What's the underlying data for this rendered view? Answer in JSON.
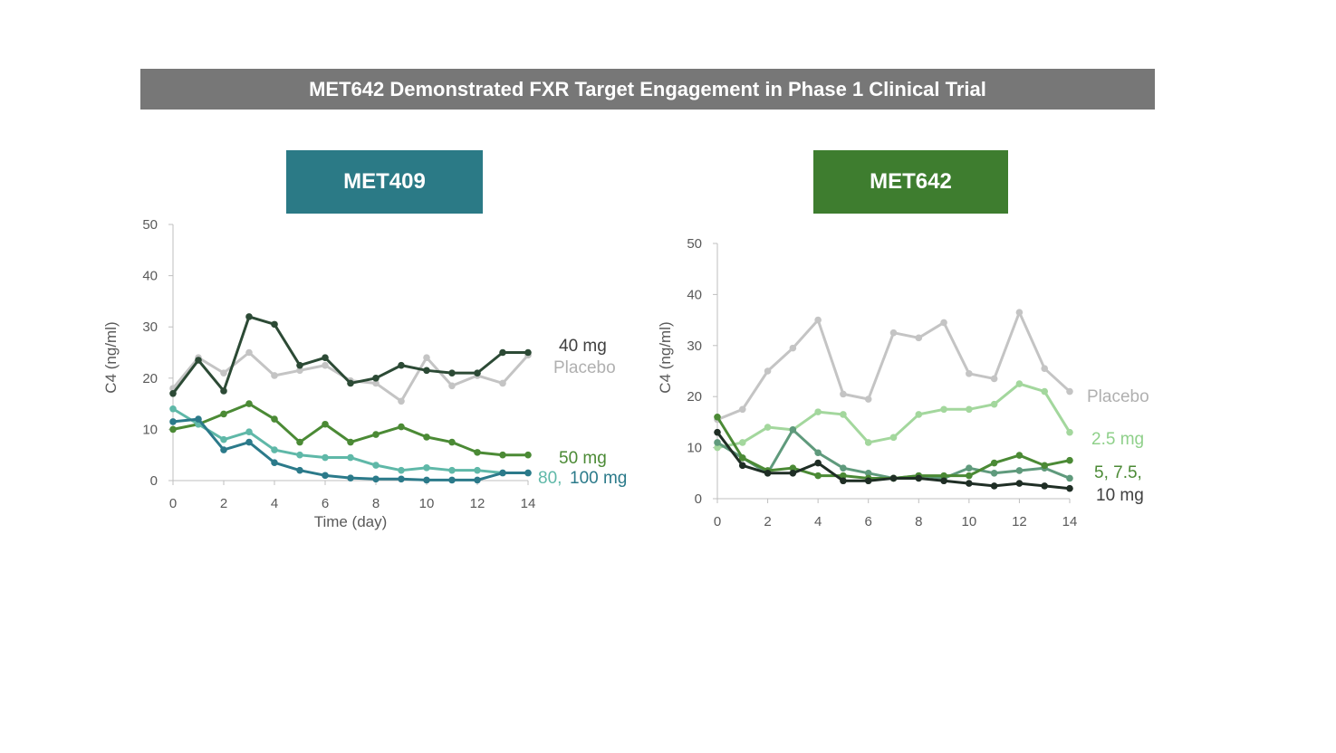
{
  "title": "MET642 Demonstrated FXR Target Engagement in Phase 1 Clinical  Trial",
  "colors": {
    "banner": "#777777",
    "met409_tag": "#2b7a86",
    "met642_tag": "#3e7d2f"
  },
  "chart_data": [
    {
      "type": "line",
      "title": "MET409",
      "xlabel": "Time (day)",
      "ylabel": "C4  (ng/ml)",
      "xlim": [
        0,
        14
      ],
      "ylim": [
        0,
        50
      ],
      "xticks": [
        0,
        2,
        4,
        6,
        8,
        10,
        12,
        14
      ],
      "yticks": [
        0,
        10,
        20,
        30,
        40,
        50
      ],
      "x": [
        0,
        1,
        2,
        3,
        4,
        5,
        6,
        7,
        8,
        9,
        10,
        11,
        12,
        13,
        14
      ],
      "series": [
        {
          "name": "Placebo",
          "color": "#c4c4c4",
          "values": [
            18,
            24,
            21,
            25,
            20.5,
            21.5,
            22.5,
            19.5,
            19,
            15.5,
            24,
            18.5,
            20.5,
            19,
            24.5
          ]
        },
        {
          "name": "40 mg",
          "color": "#2c4a35",
          "values": [
            17,
            23.5,
            17.5,
            32,
            30.5,
            22.5,
            24,
            19,
            20,
            22.5,
            21.5,
            21,
            21,
            25,
            25
          ]
        },
        {
          "name": "50 mg",
          "color": "#4b8a35",
          "values": [
            10,
            11,
            13,
            15,
            12,
            7.5,
            11,
            7.5,
            9,
            10.5,
            8.5,
            7.5,
            5.5,
            5,
            5
          ]
        },
        {
          "name": "80 mg",
          "color": "#5fb8a8",
          "values": [
            14,
            11,
            8,
            9.5,
            6,
            5,
            4.5,
            4.5,
            3,
            2,
            2.5,
            2,
            2,
            1.5,
            1.5
          ]
        },
        {
          "name": "100 mg",
          "color": "#2b7a8a",
          "values": [
            11.5,
            12,
            6,
            7.5,
            3.5,
            2,
            1,
            0.5,
            0.3,
            0.3,
            0.1,
            0.1,
            0.1,
            1.5,
            1.5
          ]
        }
      ],
      "labels": [
        {
          "text": "40 mg",
          "color": "#404040"
        },
        {
          "text": "Placebo",
          "color": "#b0b0b0"
        },
        {
          "text": "50 mg",
          "color": "#4b8a35"
        },
        {
          "text": "80,",
          "color": "#5fb8a8"
        },
        {
          "text": "100 mg",
          "color": "#2b7a8a"
        }
      ]
    },
    {
      "type": "line",
      "title": "MET642",
      "xlabel": "",
      "ylabel": "C4  (ng/ml)",
      "xlim": [
        0,
        14
      ],
      "ylim": [
        0,
        50
      ],
      "xticks": [
        0,
        2,
        4,
        6,
        8,
        10,
        12,
        14
      ],
      "yticks": [
        0,
        10,
        20,
        30,
        40,
        50
      ],
      "x": [
        0,
        1,
        2,
        3,
        4,
        5,
        6,
        7,
        8,
        9,
        10,
        11,
        12,
        13,
        14
      ],
      "series": [
        {
          "name": "Placebo",
          "color": "#c4c4c4",
          "values": [
            15.5,
            17.5,
            25,
            29.5,
            35,
            20.5,
            19.5,
            32.5,
            31.5,
            34.5,
            24.5,
            23.5,
            36.5,
            25.5,
            21
          ]
        },
        {
          "name": "2.5 mg",
          "color": "#a3d79d",
          "values": [
            10,
            11,
            14,
            13.5,
            17,
            16.5,
            11,
            12,
            16.5,
            17.5,
            17.5,
            18.5,
            22.5,
            21,
            13
          ]
        },
        {
          "name": "5 mg",
          "color": "#5f9a7c",
          "values": [
            11,
            8,
            5,
            13.5,
            9,
            6,
            5,
            4,
            4.5,
            4,
            6,
            5,
            5.5,
            6,
            4
          ]
        },
        {
          "name": "7.5 mg",
          "color": "#4b8a35",
          "values": [
            16,
            8,
            5.5,
            6,
            4.5,
            4.5,
            4,
            4,
            4.5,
            4.5,
            4.5,
            7,
            8.5,
            6.5,
            7.5
          ]
        },
        {
          "name": "10 mg",
          "color": "#1f2e25",
          "values": [
            13,
            6.5,
            5,
            5,
            7,
            3.5,
            3.5,
            4,
            4,
            3.5,
            3,
            2.5,
            3,
            2.5,
            2
          ]
        }
      ],
      "labels": [
        {
          "text": "Placebo",
          "color": "#b0b0b0"
        },
        {
          "text": "2.5 mg",
          "color": "#8fd08a"
        },
        {
          "text": "5, 7.5,",
          "color": "#4b8a35"
        },
        {
          "text": "10 mg",
          "color": "#404040"
        }
      ]
    }
  ]
}
